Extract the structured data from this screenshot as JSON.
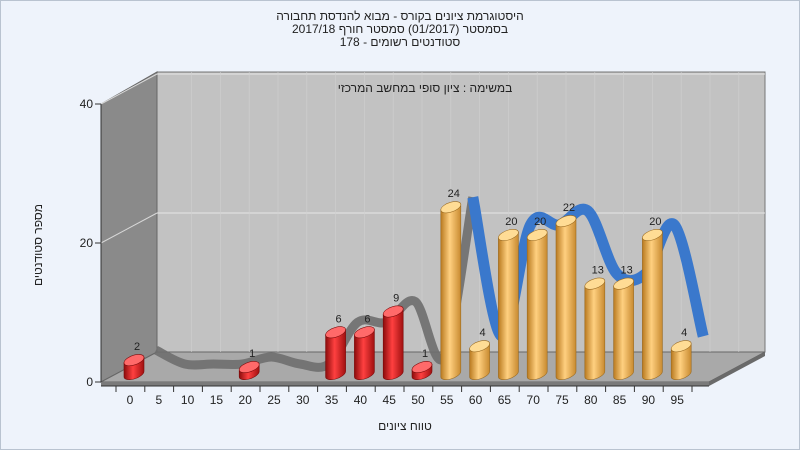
{
  "chart_data": {
    "type": "bar",
    "title": "היסטוגרמת ציונים בקורס - מבוא להנדסת תחבורה",
    "subtitle_lines": [
      "בסמסטר  (01/2017)  סמסטר חורף  2017/18",
      "סטודנטים רשומים - 178"
    ],
    "annotation": "במשימה : ציון סופי במחשב המרכזי",
    "xlabel": "טווח ציונים",
    "ylabel": "מספר סטודנטים",
    "x_ticks": [
      "0",
      "5",
      "10",
      "15",
      "20",
      "25",
      "30",
      "35",
      "40",
      "45",
      "50",
      "55",
      "60",
      "65",
      "70",
      "75",
      "80",
      "85",
      "90",
      "95"
    ],
    "y_ticks": [
      "0",
      "20",
      "40"
    ],
    "ylim": [
      0,
      40
    ],
    "grid": true,
    "categories": [
      "0",
      "5",
      "10",
      "15",
      "20",
      "25",
      "30",
      "35",
      "40",
      "45",
      "50",
      "55",
      "60",
      "65",
      "70",
      "75",
      "80",
      "85",
      "90",
      "95"
    ],
    "values": [
      2,
      0,
      0,
      0,
      1,
      0,
      0,
      6,
      6,
      9,
      1,
      24,
      4,
      20,
      20,
      22,
      13,
      13,
      20,
      4
    ],
    "colors": {
      "fail": "#d42020",
      "pass": "#e0a040",
      "trend_pass": "#3a78cc",
      "trend_fail": "#6e6e6e",
      "floor": "#a8a8a8",
      "wall_back": "#c0c0c0",
      "wall_side": "#888888"
    },
    "fail_threshold": 55
  }
}
